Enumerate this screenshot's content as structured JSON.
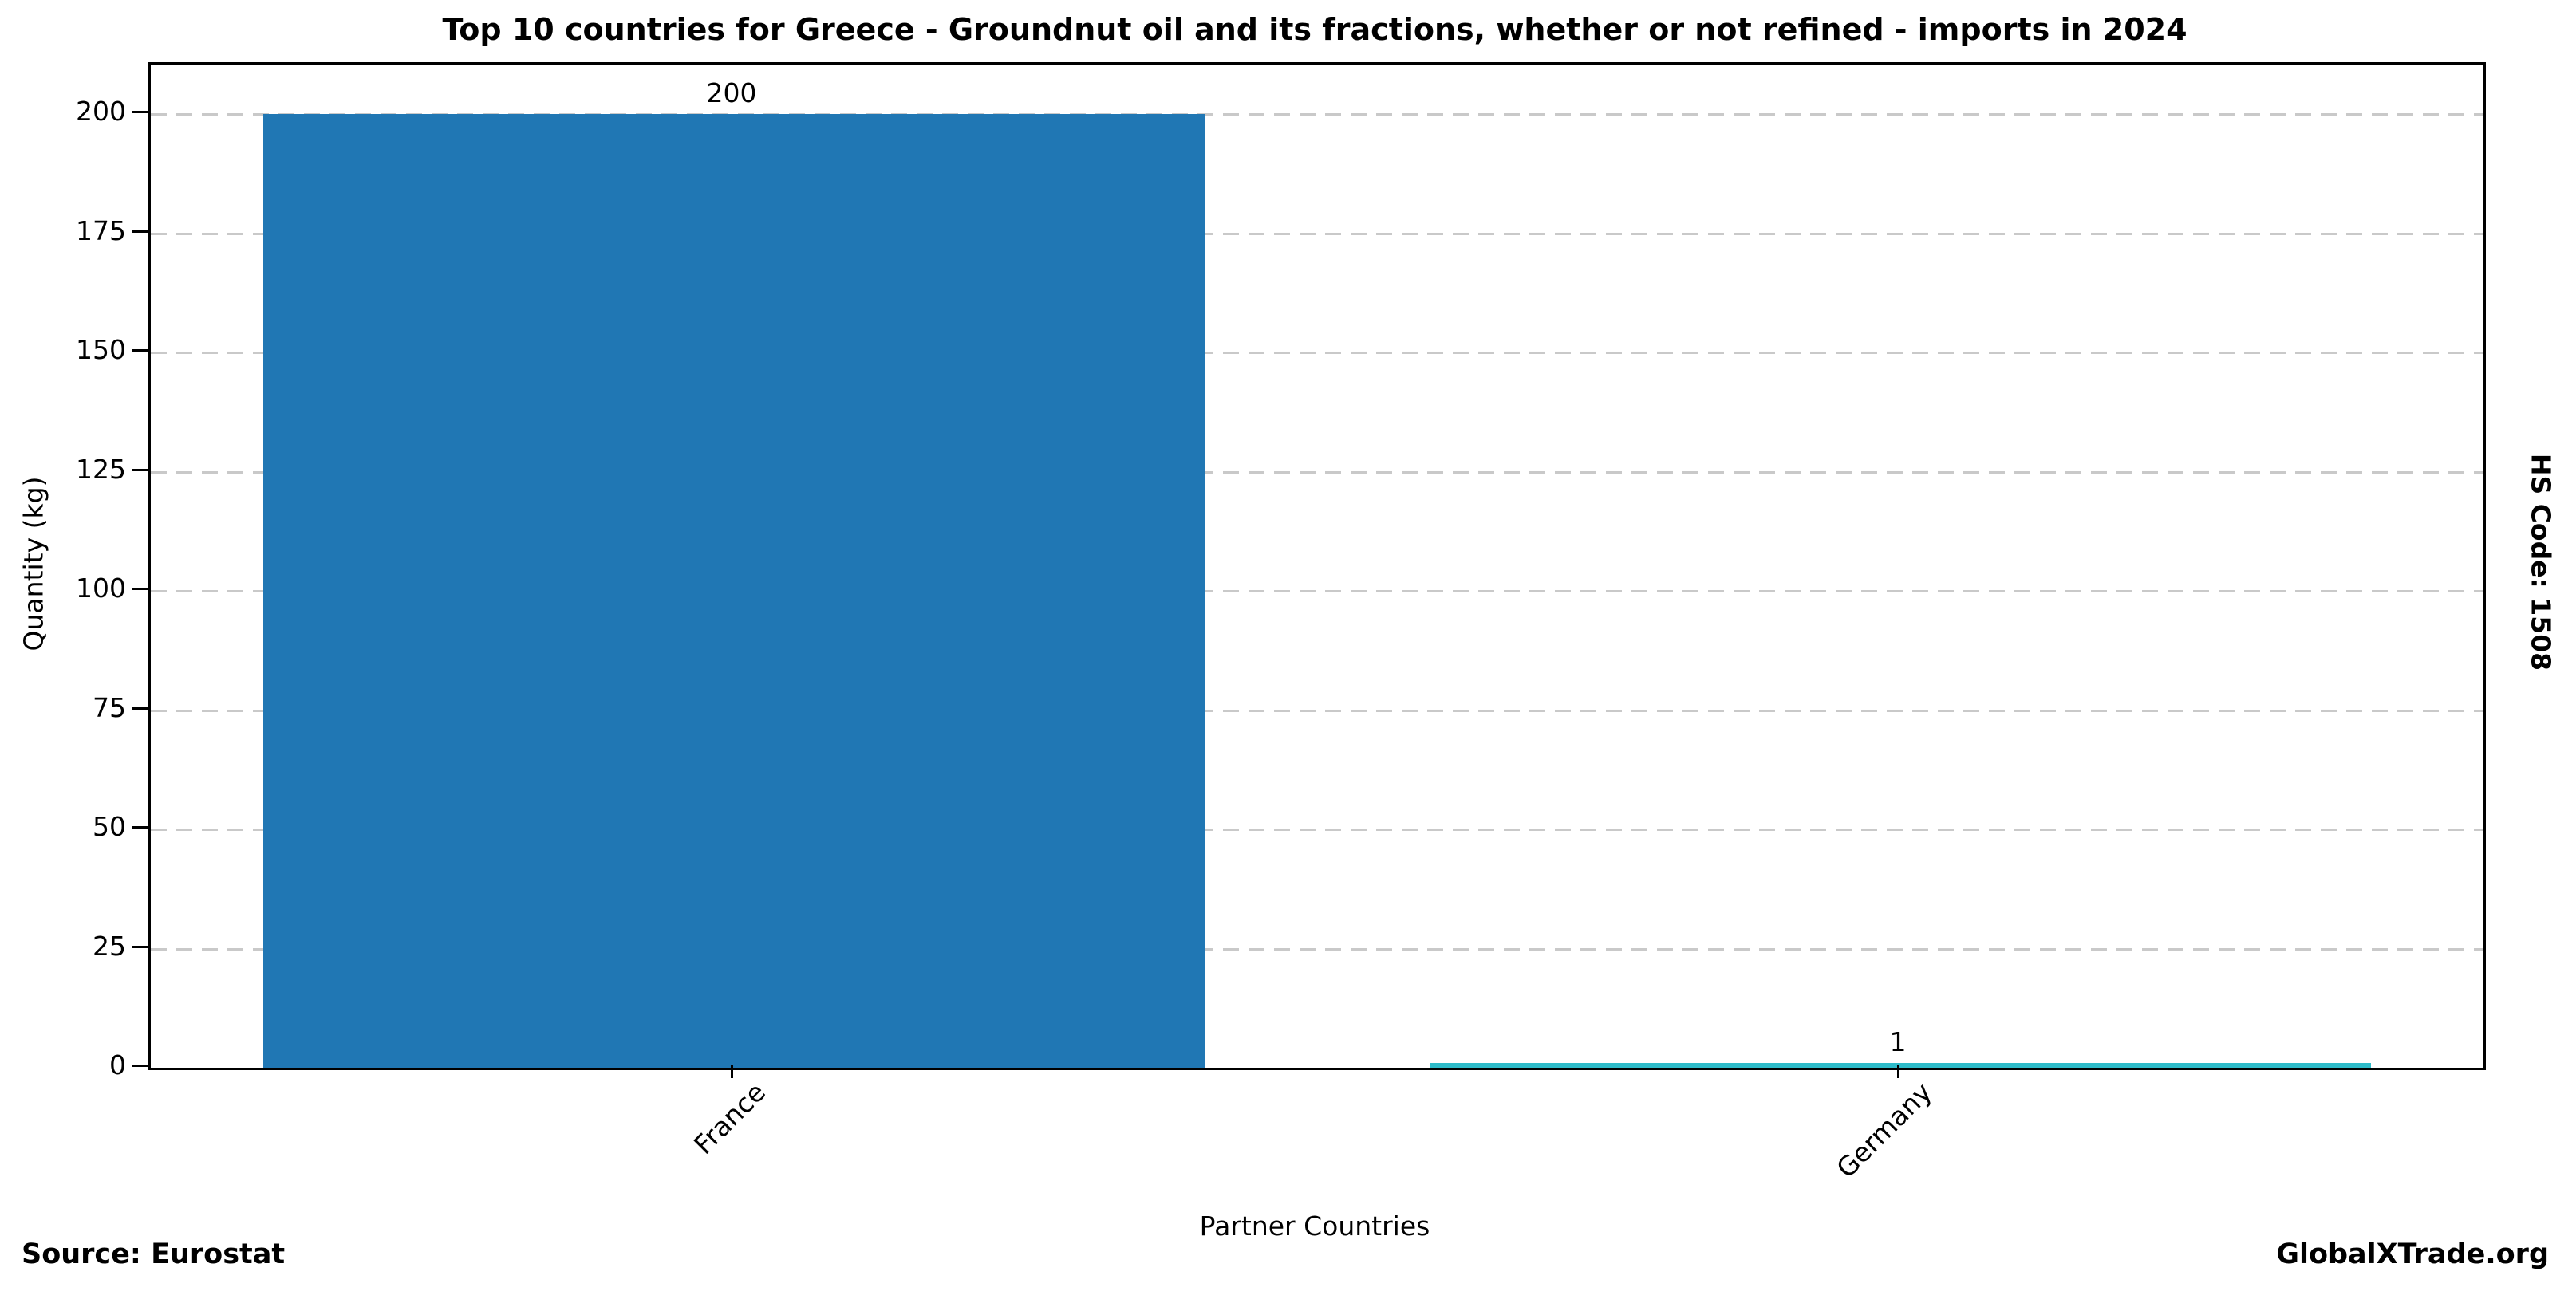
{
  "chart_data": {
    "type": "bar",
    "title": "Top 10 countries for Greece - Groundnut oil and its fractions, whether or not refined - imports in 2024",
    "categories": [
      "France",
      "Germany"
    ],
    "values": [
      200,
      1
    ],
    "value_labels": [
      "200",
      "1"
    ],
    "bar_colors": [
      "#2077b4",
      "#2ebcca"
    ],
    "xlabel": "Partner Countries",
    "ylabel": "Quantity (kg)",
    "yticks": [
      0,
      25,
      50,
      75,
      100,
      125,
      150,
      175,
      200
    ],
    "ylim": [
      0,
      210
    ],
    "grid": "horizontal dashed gray",
    "legend": "none"
  },
  "footer": {
    "source": "Source: Eurostat",
    "brand": "GlobalXTrade.org"
  },
  "side_label": "HS Code: 1508"
}
